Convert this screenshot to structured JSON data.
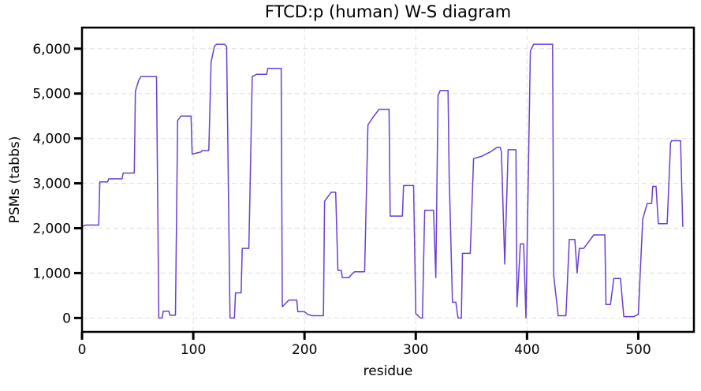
{
  "chart_data": {
    "type": "line",
    "title": "FTCD:p (human) W-S diagram",
    "xlabel": "residue",
    "ylabel": "PSMs (tabbs)",
    "xlim": [
      0,
      550
    ],
    "ylim": [
      -310,
      6470
    ],
    "xticks": [
      0,
      100,
      200,
      300,
      400,
      500
    ],
    "yticks": [
      0,
      {
        "value": 1000,
        "label": "1,000"
      },
      {
        "value": 2000,
        "label": "2,000"
      },
      {
        "value": 3000,
        "label": "3,000"
      },
      {
        "value": 4000,
        "label": "4,000"
      },
      {
        "value": 5000,
        "label": "5,000"
      },
      {
        "value": 6000,
        "label": "6,000"
      }
    ],
    "grid": true,
    "series": [
      {
        "color": "#6a3fcf",
        "x": [
          1,
          3,
          15,
          16,
          23,
          24,
          36,
          37,
          47,
          48,
          51,
          53,
          67,
          69,
          72,
          73,
          78,
          79,
          84,
          86,
          89,
          98,
          99,
          107,
          108,
          114,
          116,
          119,
          121,
          128,
          130,
          133,
          137,
          138,
          143,
          144,
          150,
          153,
          157,
          166,
          167,
          179,
          180,
          186,
          193,
          194,
          200,
          203,
          207,
          217,
          218,
          224,
          228,
          230,
          233,
          234,
          240,
          242,
          245,
          254,
          257,
          261,
          267,
          276,
          277,
          288,
          289,
          298,
          300,
          304,
          306,
          308,
          316,
          318,
          320,
          322,
          329,
          330,
          333,
          336,
          338,
          341,
          342,
          349,
          352,
          359,
          367,
          373,
          376,
          377,
          380,
          383,
          390,
          391,
          394,
          397,
          399,
          403,
          406,
          423,
          424,
          428,
          435,
          438,
          443,
          445,
          447,
          451,
          457,
          460,
          470,
          471,
          475,
          478,
          484,
          487,
          496,
          500,
          504,
          508,
          512,
          513,
          516,
          518,
          526,
          529,
          530,
          538,
          540
        ],
        "values": [
          2040,
          2070,
          2070,
          3030,
          3030,
          3100,
          3100,
          3230,
          3230,
          5050,
          5300,
          5380,
          5380,
          0,
          0,
          150,
          150,
          60,
          60,
          4400,
          4500,
          4500,
          3650,
          3700,
          3730,
          3730,
          5700,
          6050,
          6100,
          6100,
          6050,
          0,
          0,
          560,
          560,
          1550,
          1550,
          5380,
          5430,
          5430,
          5560,
          5560,
          250,
          400,
          400,
          140,
          140,
          80,
          50,
          50,
          2600,
          2800,
          2800,
          1060,
          1060,
          900,
          900,
          960,
          1030,
          1030,
          4300,
          4450,
          4650,
          4650,
          2270,
          2270,
          2950,
          2950,
          100,
          0,
          0,
          2400,
          2400,
          900,
          4950,
          5070,
          5070,
          3200,
          350,
          350,
          0,
          0,
          1440,
          1440,
          3550,
          3600,
          3700,
          3800,
          3800,
          3700,
          1200,
          3750,
          3750,
          250,
          1650,
          1650,
          0,
          5950,
          6100,
          6100,
          950,
          50,
          50,
          1750,
          1750,
          1000,
          1550,
          1550,
          1750,
          1850,
          1850,
          300,
          300,
          880,
          880,
          30,
          30,
          80,
          2200,
          2550,
          2550,
          2930,
          2930,
          2100,
          2100,
          3900,
          3950,
          3950,
          2030
        ]
      }
    ]
  }
}
